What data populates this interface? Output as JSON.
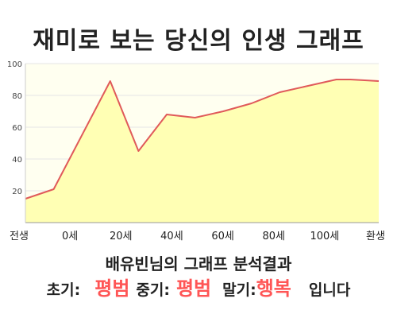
{
  "title": "재미로 보는 당신의 인생 그래프",
  "summary": {
    "heading": "배유빈님의 그래프 분석결과",
    "early_label": "초기:",
    "early_value": "평범",
    "middle_label": "중기:",
    "middle_value": "평범",
    "late_label": "말기:",
    "late_value": "행복",
    "ending": "입니다"
  },
  "colors": {
    "line": "#e05a5a",
    "fill": "#ffffb4",
    "plot_background": "#fffff0",
    "grid": "#e6e6e6",
    "highlight": "#ff5555"
  },
  "chart_data": {
    "type": "area",
    "title": "재미로 보는 당신의 인생 그래프",
    "xlabel": "",
    "ylabel": "",
    "x_tick_labels": [
      "전생",
      "0세",
      "20세",
      "40세",
      "60세",
      "80세",
      "100세",
      "환생"
    ],
    "ylim": [
      0,
      100
    ],
    "y_ticks": [
      20,
      40,
      60,
      80,
      100
    ],
    "grid": true,
    "series": [
      {
        "x": [
          -10,
          0,
          20,
          30,
          40,
          50,
          60,
          70,
          80,
          90,
          100,
          105,
          115
        ],
        "values": [
          15,
          21,
          89,
          45,
          68,
          66,
          70,
          75,
          82,
          86,
          90,
          90,
          89
        ]
      }
    ]
  }
}
